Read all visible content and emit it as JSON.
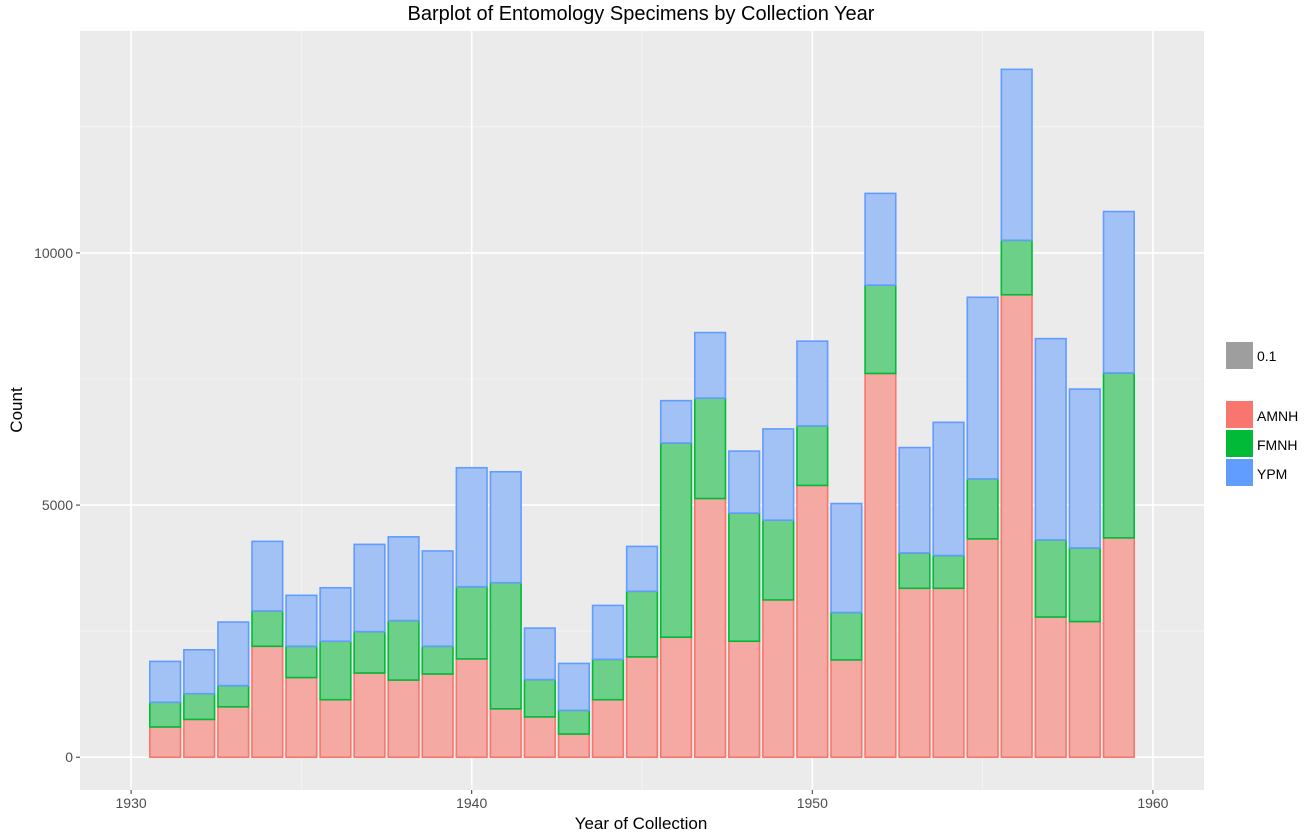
{
  "chart_data": {
    "type": "bar",
    "stacked": true,
    "title": "Barplot of Entomology Specimens by Collection Year",
    "xlabel": "Year of Collection",
    "ylabel": "Count",
    "xlim": [
      1928.5,
      1961.5
    ],
    "ylim": [
      -650,
      14400
    ],
    "x_ticks": [
      1930,
      1940,
      1950,
      1960
    ],
    "y_ticks": [
      0,
      5000,
      10000
    ],
    "grid": true,
    "legend_position": "right",
    "alpha_legend": {
      "label": "0.1",
      "color": "#9e9e9e"
    },
    "x": [
      1931,
      1932,
      1933,
      1934,
      1935,
      1936,
      1937,
      1938,
      1939,
      1940,
      1941,
      1942,
      1943,
      1944,
      1945,
      1946,
      1947,
      1948,
      1949,
      1950,
      1951,
      1952,
      1953,
      1954,
      1955,
      1956,
      1957,
      1958,
      1959
    ],
    "series": [
      {
        "name": "AMNH",
        "fill": "#f4a9a2",
        "stroke": "#f8766d",
        "values": [
          600,
          750,
          1000,
          2200,
          1580,
          1140,
          1670,
          1530,
          1650,
          1950,
          960,
          800,
          460,
          1140,
          1990,
          2380,
          5130,
          2300,
          3120,
          5390,
          1930,
          7610,
          3350,
          3350,
          4330,
          9170,
          2780,
          2690,
          4350
        ]
      },
      {
        "name": "FMNH",
        "fill": "#6cd088",
        "stroke": "#00ba38",
        "values": [
          490,
          510,
          420,
          700,
          620,
          1160,
          820,
          1180,
          550,
          1430,
          2500,
          740,
          470,
          800,
          1300,
          3850,
          1990,
          2540,
          1580,
          1180,
          940,
          1750,
          700,
          650,
          1190,
          1080,
          1530,
          1460,
          3270
        ]
      },
      {
        "name": "YPM",
        "fill": "#a2c2f6",
        "stroke": "#619cff",
        "values": [
          810,
          870,
          1260,
          1380,
          1010,
          1060,
          1730,
          1660,
          1890,
          2360,
          2200,
          1020,
          930,
          1070,
          890,
          840,
          1300,
          1230,
          1810,
          1680,
          2160,
          1820,
          2090,
          2640,
          3600,
          3390,
          3990,
          3150,
          3200
        ]
      }
    ]
  }
}
